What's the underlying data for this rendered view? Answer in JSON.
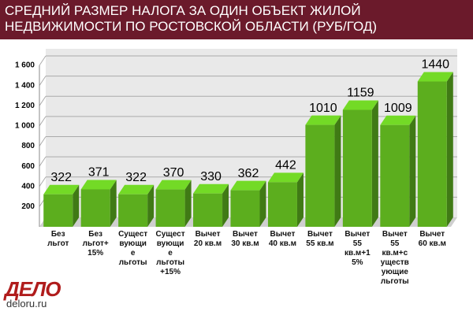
{
  "chart_data": {
    "type": "bar3d",
    "title": "СРЕДНИЙ РАЗМЕР НАЛОГА ЗА ОДИН ОБЪЕКТ ЖИЛОЙ НЕДВИЖИМОСТИ ПО РОСТОВСКОЙ ОБЛАСТИ (РУБ/ГОД)",
    "categories": [
      "Без\nльгот",
      "Без\nльгот+\n15%",
      "Сущест\nвующи\nе\nльготы",
      "Сущест\nвующи\nе\nльготы\n+15%",
      "Вычет\n20 кв.м",
      "Вычет\n30 кв.м",
      "Вычет\n40 кв.м",
      "Вычет\n55 кв.м",
      "Вычет\n55\nкв.м+1\n5%",
      "Вычет\n55\nкв.м+с\nуществ\nующие\nльготы",
      "Вычет\n60 кв.м"
    ],
    "values": [
      322,
      371,
      322,
      370,
      330,
      362,
      442,
      1010,
      1159,
      1009,
      1440
    ],
    "color": "#5cae1e",
    "ylim": [
      0,
      1600
    ],
    "yticks": [
      200,
      400,
      600,
      800,
      {
        "value": 1000,
        "label": "1 000"
      },
      {
        "value": 1200,
        "label": "1 200"
      },
      {
        "value": 1400,
        "label": "1 400"
      },
      {
        "value": 1600,
        "label": "1 600"
      }
    ],
    "grid": true
  },
  "brand": {
    "logo": "ДЕЛО",
    "site": "deloru.ru"
  }
}
